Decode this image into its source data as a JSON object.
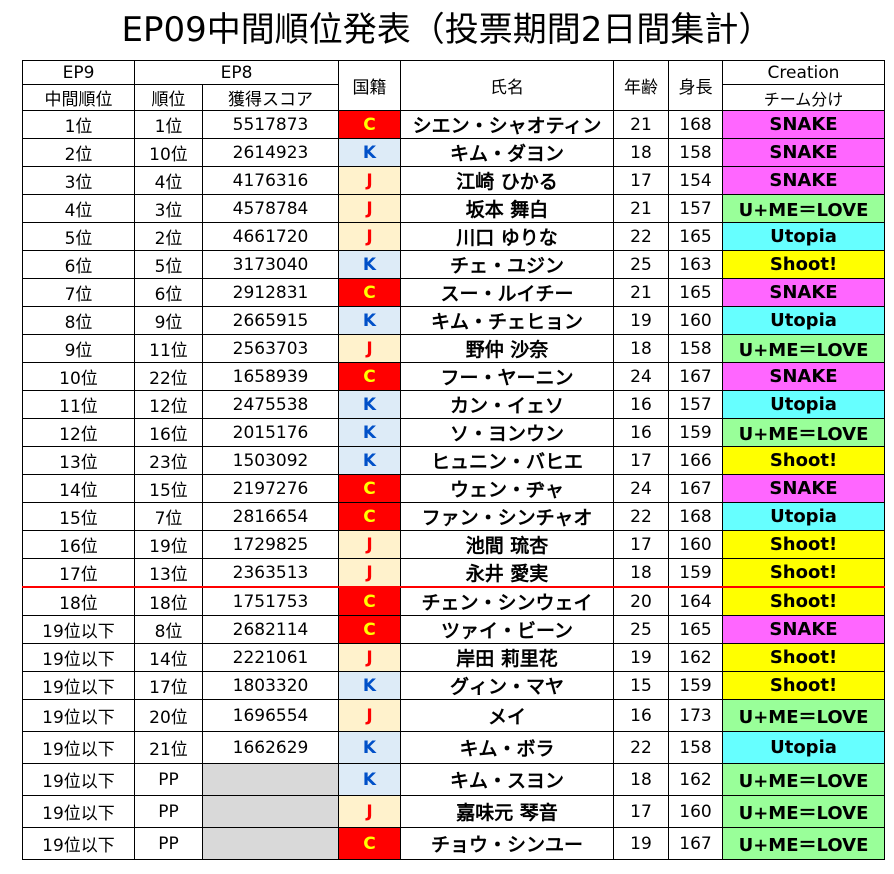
{
  "title": "EP09中間順位発表（投票期間2日間集計）",
  "header": {
    "ep9": "EP9",
    "ep8": "EP8",
    "nationality": "国籍",
    "name": "氏名",
    "age": "年齢",
    "height": "身長",
    "creation_line1": "Creation",
    "creation_line2": "チーム分け",
    "mid_rank": "中間順位",
    "rank": "順位",
    "score": "獲得スコア"
  },
  "colors": {
    "C": "#ff0000",
    "K": "#ddebf7",
    "J": "#fff2cc",
    "SNAKE": "#ff66ff",
    "Utopia": "#66ffff",
    "Shoot!": "#ffff00",
    "U+ME＝LOVE": "#99ff99",
    "cutline": "#ff0000"
  },
  "rows": [
    {
      "mid": "1位",
      "rank": "1位",
      "score": "5517873",
      "nat": "C",
      "name": "シエン・シャオティン",
      "age": "21",
      "height": "168",
      "team": "SNAKE"
    },
    {
      "mid": "2位",
      "rank": "10位",
      "score": "2614923",
      "nat": "K",
      "name": "キム・ダヨン",
      "age": "18",
      "height": "158",
      "team": "SNAKE"
    },
    {
      "mid": "3位",
      "rank": "4位",
      "score": "4176316",
      "nat": "J",
      "name": "江崎 ひかる",
      "age": "17",
      "height": "154",
      "team": "SNAKE"
    },
    {
      "mid": "4位",
      "rank": "3位",
      "score": "4578784",
      "nat": "J",
      "name": "坂本 舞白",
      "age": "21",
      "height": "157",
      "team": "U+ME＝LOVE"
    },
    {
      "mid": "5位",
      "rank": "2位",
      "score": "4661720",
      "nat": "J",
      "name": "川口 ゆりな",
      "age": "22",
      "height": "165",
      "team": "Utopia"
    },
    {
      "mid": "6位",
      "rank": "5位",
      "score": "3173040",
      "nat": "K",
      "name": "チェ・ユジン",
      "age": "25",
      "height": "163",
      "team": "Shoot!"
    },
    {
      "mid": "7位",
      "rank": "6位",
      "score": "2912831",
      "nat": "C",
      "name": "スー・ルイチー",
      "age": "21",
      "height": "165",
      "team": "SNAKE"
    },
    {
      "mid": "8位",
      "rank": "9位",
      "score": "2665915",
      "nat": "K",
      "name": "キム・チェヒョン",
      "age": "19",
      "height": "160",
      "team": "Utopia"
    },
    {
      "mid": "9位",
      "rank": "11位",
      "score": "2563703",
      "nat": "J",
      "name": "野仲 沙奈",
      "age": "18",
      "height": "158",
      "team": "U+ME＝LOVE"
    },
    {
      "mid": "10位",
      "rank": "22位",
      "score": "1658939",
      "nat": "C",
      "name": "フー・ヤーニン",
      "age": "24",
      "height": "167",
      "team": "SNAKE"
    },
    {
      "mid": "11位",
      "rank": "12位",
      "score": "2475538",
      "nat": "K",
      "name": "カン・イェソ",
      "age": "16",
      "height": "157",
      "team": "Utopia"
    },
    {
      "mid": "12位",
      "rank": "16位",
      "score": "2015176",
      "nat": "K",
      "name": "ソ・ヨンウン",
      "age": "16",
      "height": "159",
      "team": "U+ME＝LOVE"
    },
    {
      "mid": "13位",
      "rank": "23位",
      "score": "1503092",
      "nat": "K",
      "name": "ヒュニン・バヒエ",
      "age": "17",
      "height": "166",
      "team": "Shoot!"
    },
    {
      "mid": "14位",
      "rank": "15位",
      "score": "2197276",
      "nat": "C",
      "name": "ウェン・ヂャ",
      "age": "24",
      "height": "167",
      "team": "SNAKE"
    },
    {
      "mid": "15位",
      "rank": "7位",
      "score": "2816654",
      "nat": "C",
      "name": "ファン・シンチャオ",
      "age": "22",
      "height": "168",
      "team": "Utopia"
    },
    {
      "mid": "16位",
      "rank": "19位",
      "score": "1729825",
      "nat": "J",
      "name": "池間 琉杏",
      "age": "17",
      "height": "160",
      "team": "Shoot!"
    },
    {
      "mid": "17位",
      "rank": "13位",
      "score": "2363513",
      "nat": "J",
      "name": "永井 愛実",
      "age": "18",
      "height": "159",
      "team": "Shoot!"
    },
    {
      "mid": "18位",
      "rank": "18位",
      "score": "1751753",
      "nat": "C",
      "name": "チェン・シンウェイ",
      "age": "20",
      "height": "164",
      "team": "Shoot!"
    },
    {
      "mid": "19位以下",
      "rank": "8位",
      "score": "2682114",
      "nat": "C",
      "name": "ツァイ・ビーン",
      "age": "25",
      "height": "165",
      "team": "SNAKE"
    },
    {
      "mid": "19位以下",
      "rank": "14位",
      "score": "2221061",
      "nat": "J",
      "name": "岸田 莉里花",
      "age": "19",
      "height": "162",
      "team": "Shoot!"
    },
    {
      "mid": "19位以下",
      "rank": "17位",
      "score": "1803320",
      "nat": "K",
      "name": "グィン・マヤ",
      "age": "15",
      "height": "159",
      "team": "Shoot!"
    },
    {
      "mid": "19位以下",
      "rank": "20位",
      "score": "1696554",
      "nat": "J",
      "name": "メイ",
      "age": "16",
      "height": "173",
      "team": "U+ME＝LOVE"
    },
    {
      "mid": "19位以下",
      "rank": "21位",
      "score": "1662629",
      "nat": "K",
      "name": "キム・ボラ",
      "age": "22",
      "height": "158",
      "team": "Utopia"
    },
    {
      "mid": "19位以下",
      "rank": "PP",
      "score": "",
      "nat": "K",
      "name": "キム・スヨン",
      "age": "18",
      "height": "162",
      "team": "U+ME＝LOVE"
    },
    {
      "mid": "19位以下",
      "rank": "PP",
      "score": "",
      "nat": "J",
      "name": "嘉味元 琴音",
      "age": "17",
      "height": "160",
      "team": "U+ME＝LOVE"
    },
    {
      "mid": "19位以下",
      "rank": "PP",
      "score": "",
      "nat": "C",
      "name": "チョウ・シンユー",
      "age": "19",
      "height": "167",
      "team": "U+ME＝LOVE"
    }
  ]
}
